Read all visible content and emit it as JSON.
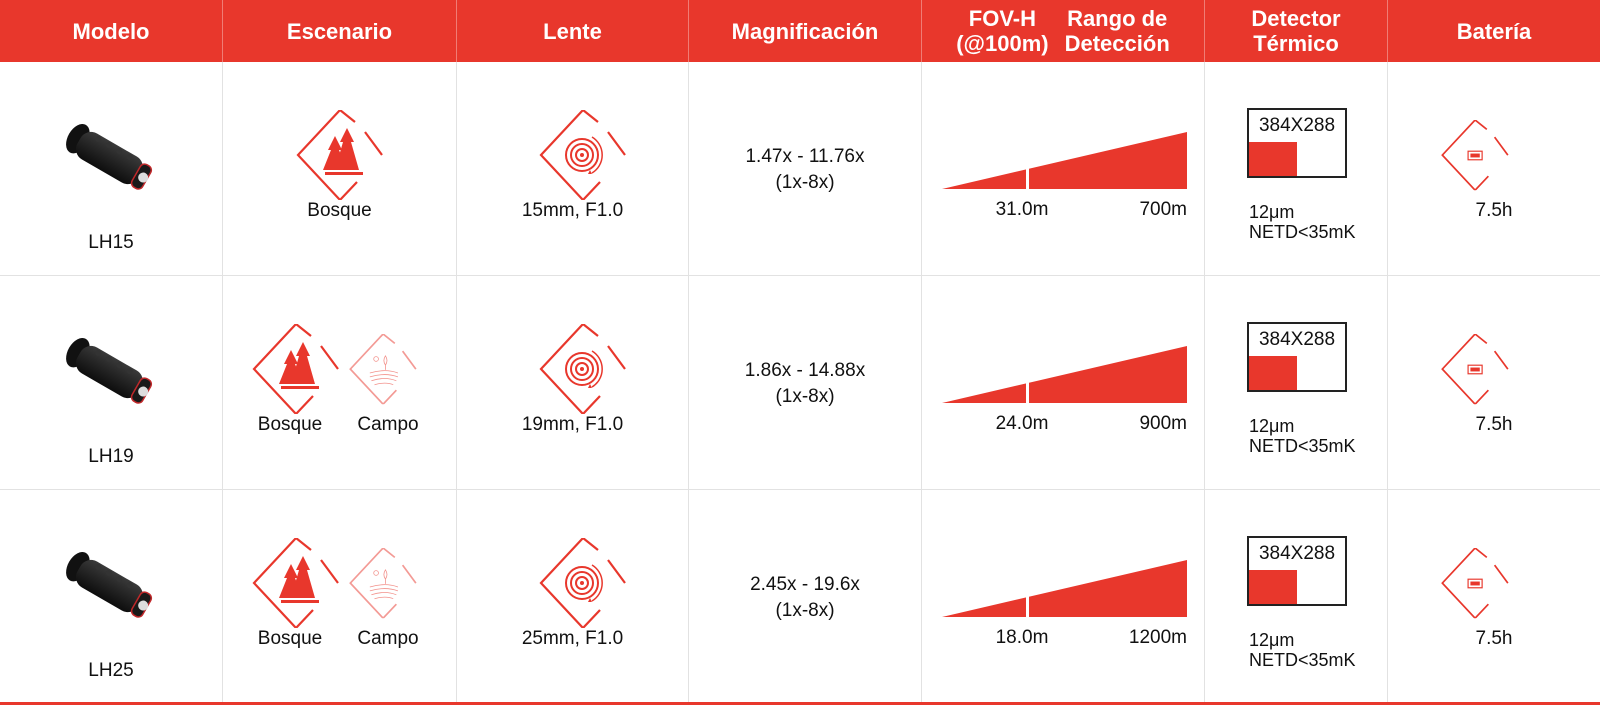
{
  "headers": {
    "modelo": "Modelo",
    "escenario": "Escenario",
    "lente": "Lente",
    "magnificacion": "Magnificación",
    "fov_line1": "FOV-H",
    "fov_line2": "(@100m)",
    "rango_line1": "Rango de",
    "rango_line2": "Detección",
    "detector_line1": "Detector",
    "detector_line2": "Térmico",
    "bateria": "Batería"
  },
  "colors": {
    "accent": "#e8372c"
  },
  "rows": [
    {
      "model": "LH15",
      "scenarios": [
        "Bosque"
      ],
      "lens": "15mm, F1.0",
      "mag": "1.47x - 11.76x",
      "mag_zoom": "(1x-8x)",
      "fov": "31.0m",
      "range": "700m",
      "resolution": "384X288",
      "pixel": "12μm",
      "netd": "NETD<35mK",
      "battery": "7.5h"
    },
    {
      "model": "LH19",
      "scenarios": [
        "Bosque",
        "Campo"
      ],
      "lens": "19mm, F1.0",
      "mag": "1.86x - 14.88x",
      "mag_zoom": "(1x-8x)",
      "fov": "24.0m",
      "range": "900m",
      "resolution": "384X288",
      "pixel": "12μm",
      "netd": "NETD<35mK",
      "battery": "7.5h"
    },
    {
      "model": "LH25",
      "scenarios": [
        "Bosque",
        "Campo"
      ],
      "lens": "25mm, F1.0",
      "mag": "2.45x - 19.6x",
      "mag_zoom": "(1x-8x)",
      "fov": "18.0m",
      "range": "1200m",
      "resolution": "384X288",
      "pixel": "12μm",
      "netd": "NETD<35mK",
      "battery": "7.5h"
    }
  ]
}
